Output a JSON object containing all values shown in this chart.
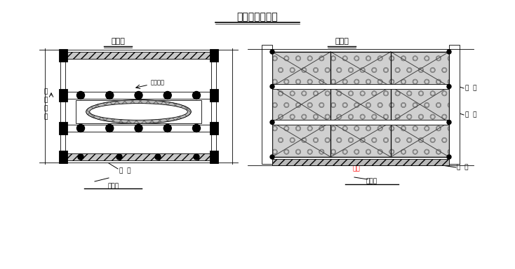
{
  "title": "承台暖棚示意图",
  "label_plan": "平面图",
  "label_elev": "立面图",
  "label_road_dir": "线\n路\n方\n向",
  "label_heating": "散热模型",
  "label_li_gan_L": "立  杆",
  "label_heng_leng_L": "横楞号",
  "label_lin_gan": "檩  杆",
  "label_li_gan_R1": "立  杆",
  "label_li_gan_R2": "立  杆",
  "label_heng_leng_R": "横楞号",
  "label_ji_da": "基大",
  "bg": "#ffffff",
  "lc": "#000000"
}
